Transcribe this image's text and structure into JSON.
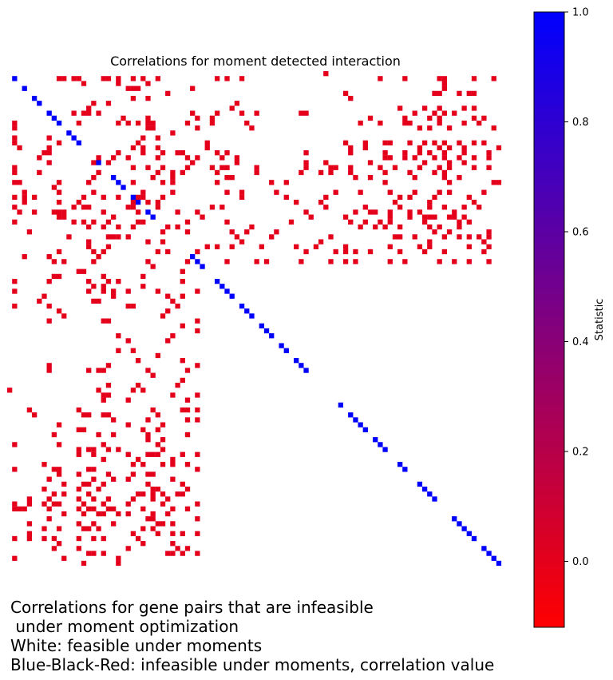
{
  "chart_data": {
    "type": "heatmap",
    "title": "Correlations for moment detected interaction",
    "matrix_size": 100,
    "background": "white",
    "colormap": {
      "low_color": "#ff0000",
      "mid_color": "#800080",
      "high_color": "#0000ff",
      "vmin": -0.12,
      "vmax": 1.0
    },
    "colorbar": {
      "label": "Statistic",
      "ticks": [
        0.0,
        0.2,
        0.4,
        0.6,
        0.8,
        1.0
      ],
      "tick_labels": [
        "0.0",
        "0.2",
        "0.4",
        "0.6",
        "0.8",
        "1.0"
      ]
    },
    "diagonal_value": 1.0,
    "diagonal_indices": [
      1,
      3,
      5,
      6,
      8,
      9,
      10,
      12,
      13,
      14,
      18,
      21,
      22,
      23,
      25,
      26,
      28,
      29,
      37,
      38,
      39,
      42,
      43,
      44,
      45,
      47,
      48,
      49,
      51,
      52,
      53,
      55,
      56,
      58,
      59,
      60,
      67,
      69,
      70,
      71,
      72,
      74,
      75,
      76,
      79,
      80,
      83,
      84,
      85,
      86,
      90,
      91,
      92,
      93,
      94,
      96,
      97,
      98,
      99
    ],
    "offdiag_value": 0.0,
    "offdiag_cells": [
      [
        0,
        64
      ],
      [
        1,
        13
      ],
      [
        1,
        14
      ],
      [
        1,
        20
      ],
      [
        1,
        22
      ],
      [
        1,
        25
      ],
      [
        1,
        30
      ],
      [
        1,
        42
      ],
      [
        1,
        44
      ],
      [
        1,
        47
      ],
      [
        1,
        75
      ],
      [
        1,
        80
      ],
      [
        1,
        87
      ],
      [
        1,
        88
      ],
      [
        1,
        94
      ],
      [
        1,
        98
      ],
      [
        2,
        88
      ],
      [
        3,
        25
      ],
      [
        3,
        37
      ],
      [
        3,
        88
      ],
      [
        4,
        68
      ],
      [
        4,
        86
      ],
      [
        4,
        87
      ],
      [
        4,
        91
      ],
      [
        4,
        93
      ],
      [
        4,
        94
      ],
      [
        5,
        69
      ],
      [
        6,
        20
      ],
      [
        6,
        46
      ],
      [
        7,
        45
      ],
      [
        7,
        79
      ],
      [
        7,
        84
      ],
      [
        7,
        87
      ],
      [
        7,
        92
      ],
      [
        7,
        94
      ],
      [
        8,
        13
      ],
      [
        8,
        15
      ],
      [
        8,
        16
      ],
      [
        8,
        18
      ],
      [
        8,
        37
      ],
      [
        8,
        42
      ],
      [
        8,
        47
      ],
      [
        8,
        50
      ],
      [
        8,
        59
      ],
      [
        8,
        60
      ],
      [
        8,
        82
      ],
      [
        8,
        86
      ],
      [
        8,
        88
      ],
      [
        8,
        90
      ],
      [
        9,
        23
      ],
      [
        9,
        28
      ],
      [
        9,
        38
      ],
      [
        9,
        41
      ],
      [
        9,
        73
      ],
      [
        9,
        80
      ],
      [
        9,
        85
      ],
      [
        9,
        87
      ],
      [
        9,
        94
      ],
      [
        9,
        96
      ],
      [
        10,
        1
      ],
      [
        10,
        14
      ],
      [
        10,
        26
      ],
      [
        10,
        28
      ],
      [
        10,
        29
      ],
      [
        10,
        36
      ],
      [
        10,
        41
      ],
      [
        10,
        48
      ],
      [
        10,
        71
      ],
      [
        10,
        75
      ],
      [
        10,
        80
      ],
      [
        10,
        81
      ],
      [
        10,
        87
      ],
      [
        10,
        92
      ],
      [
        10,
        95
      ],
      [
        11,
        1
      ],
      [
        11,
        28
      ],
      [
        11,
        49
      ],
      [
        11,
        83
      ],
      [
        11,
        85
      ],
      [
        11,
        89
      ],
      [
        11,
        98
      ],
      [
        14,
        40
      ],
      [
        14,
        68
      ],
      [
        14,
        72
      ],
      [
        14,
        76
      ],
      [
        14,
        77
      ],
      [
        14,
        81
      ],
      [
        14,
        84
      ],
      [
        14,
        86
      ],
      [
        14,
        88
      ],
      [
        14,
        91
      ],
      [
        14,
        94
      ],
      [
        14,
        96
      ],
      [
        15,
        2
      ],
      [
        15,
        27
      ],
      [
        15,
        30
      ],
      [
        15,
        40
      ],
      [
        15,
        69
      ],
      [
        15,
        72
      ],
      [
        15,
        83
      ],
      [
        15,
        87
      ],
      [
        15,
        89
      ],
      [
        15,
        92
      ],
      [
        15,
        99
      ],
      [
        16,
        7
      ],
      [
        16,
        27
      ],
      [
        16,
        31
      ],
      [
        16,
        35
      ],
      [
        16,
        42
      ],
      [
        16,
        44
      ],
      [
        16,
        60
      ],
      [
        16,
        69
      ],
      [
        16,
        76
      ],
      [
        16,
        80
      ],
      [
        16,
        83
      ],
      [
        16,
        85
      ],
      [
        16,
        88
      ],
      [
        16,
        92
      ],
      [
        16,
        97
      ],
      [
        17,
        6
      ],
      [
        17,
        18
      ],
      [
        17,
        21
      ],
      [
        17,
        24
      ],
      [
        17,
        30
      ],
      [
        17,
        36
      ],
      [
        17,
        38
      ],
      [
        17,
        43
      ],
      [
        17,
        46
      ],
      [
        17,
        76
      ],
      [
        17,
        77
      ],
      [
        17,
        80
      ],
      [
        17,
        82
      ],
      [
        17,
        86
      ],
      [
        17,
        88
      ],
      [
        17,
        91
      ],
      [
        17,
        94
      ],
      [
        17,
        97
      ],
      [
        18,
        37
      ],
      [
        18,
        46
      ],
      [
        18,
        60
      ],
      [
        18,
        64
      ],
      [
        18,
        73
      ],
      [
        18,
        84
      ],
      [
        18,
        89
      ],
      [
        18,
        92
      ],
      [
        19,
        1
      ],
      [
        19,
        25
      ],
      [
        19,
        28
      ],
      [
        19,
        31
      ],
      [
        19,
        36
      ],
      [
        19,
        41
      ],
      [
        19,
        43
      ],
      [
        19,
        44
      ],
      [
        19,
        50
      ],
      [
        19,
        60
      ],
      [
        19,
        65
      ],
      [
        19,
        66
      ],
      [
        19,
        69
      ],
      [
        19,
        75
      ],
      [
        19,
        78
      ],
      [
        19,
        83
      ],
      [
        19,
        87
      ],
      [
        19,
        89
      ],
      [
        19,
        94
      ],
      [
        19,
        97
      ],
      [
        20,
        18
      ],
      [
        20,
        30
      ],
      [
        20,
        35
      ],
      [
        20,
        42
      ],
      [
        20,
        50
      ],
      [
        20,
        59
      ],
      [
        20,
        63
      ],
      [
        20,
        65
      ],
      [
        20,
        69
      ],
      [
        20,
        76
      ],
      [
        20,
        81
      ],
      [
        20,
        86
      ],
      [
        20,
        88
      ],
      [
        21,
        21
      ],
      [
        21,
        44
      ],
      [
        21,
        45
      ],
      [
        21,
        70
      ],
      [
        21,
        73
      ],
      [
        21,
        82
      ],
      [
        21,
        88
      ],
      [
        21,
        91
      ],
      [
        22,
        2
      ],
      [
        22,
        10
      ],
      [
        22,
        16
      ],
      [
        22,
        25
      ],
      [
        22,
        33
      ],
      [
        22,
        42
      ],
      [
        22,
        53
      ],
      [
        22,
        56
      ],
      [
        22,
        76
      ],
      [
        22,
        89
      ],
      [
        22,
        98
      ],
      [
        22,
        99
      ],
      [
        24,
        3
      ],
      [
        24,
        10
      ],
      [
        24,
        27
      ],
      [
        24,
        44
      ],
      [
        24,
        47
      ],
      [
        24,
        54
      ],
      [
        24,
        66
      ],
      [
        24,
        71
      ],
      [
        24,
        77
      ],
      [
        24,
        82
      ],
      [
        24,
        87
      ],
      [
        24,
        89
      ],
      [
        24,
        96
      ],
      [
        25,
        5
      ],
      [
        25,
        15
      ],
      [
        25,
        26
      ],
      [
        25,
        31
      ],
      [
        25,
        47
      ],
      [
        25,
        56
      ],
      [
        25,
        64
      ],
      [
        25,
        79
      ],
      [
        25,
        81
      ],
      [
        25,
        86
      ],
      [
        25,
        93
      ],
      [
        26,
        3
      ],
      [
        26,
        14
      ],
      [
        26,
        28
      ],
      [
        26,
        30
      ],
      [
        26,
        58
      ],
      [
        26,
        63
      ],
      [
        26,
        78
      ],
      [
        26,
        85
      ],
      [
        26,
        94
      ],
      [
        27,
        1
      ],
      [
        27,
        13
      ],
      [
        27,
        25
      ],
      [
        27,
        41
      ],
      [
        27,
        43
      ],
      [
        27,
        64
      ],
      [
        27,
        72
      ],
      [
        27,
        79
      ],
      [
        27,
        85
      ],
      [
        27,
        88
      ],
      [
        27,
        92
      ],
      [
        27,
        95
      ],
      [
        28,
        2
      ],
      [
        28,
        5
      ],
      [
        28,
        60
      ],
      [
        28,
        70
      ],
      [
        28,
        73
      ],
      [
        28,
        74
      ],
      [
        28,
        77
      ],
      [
        28,
        81
      ],
      [
        28,
        83
      ],
      [
        28,
        90
      ],
      [
        29,
        11
      ],
      [
        29,
        21
      ],
      [
        29,
        39
      ],
      [
        29,
        61
      ],
      [
        29,
        68
      ],
      [
        29,
        77
      ],
      [
        29,
        81
      ],
      [
        29,
        84
      ],
      [
        29,
        85
      ],
      [
        29,
        86
      ],
      [
        29,
        89
      ],
      [
        29,
        90
      ],
      [
        29,
        92
      ],
      [
        30,
        13
      ],
      [
        30,
        27
      ],
      [
        30,
        36
      ],
      [
        30,
        44
      ],
      [
        30,
        57
      ],
      [
        30,
        69
      ],
      [
        30,
        72
      ],
      [
        30,
        75
      ],
      [
        30,
        77
      ],
      [
        30,
        84
      ],
      [
        30,
        91
      ],
      [
        30,
        93
      ],
      [
        31,
        22
      ],
      [
        31,
        32
      ],
      [
        31,
        49
      ],
      [
        31,
        71
      ],
      [
        31,
        74
      ],
      [
        31,
        76
      ],
      [
        31,
        79
      ],
      [
        31,
        85
      ],
      [
        31,
        87
      ],
      [
        31,
        91
      ],
      [
        32,
        4
      ],
      [
        32,
        36
      ],
      [
        32,
        45
      ],
      [
        32,
        48
      ],
      [
        32,
        54
      ],
      [
        32,
        86
      ],
      [
        32,
        89
      ],
      [
        32,
        97
      ],
      [
        33,
        12
      ],
      [
        33,
        20
      ],
      [
        33,
        21
      ],
      [
        33,
        24
      ],
      [
        33,
        46
      ],
      [
        33,
        53
      ],
      [
        33,
        65
      ],
      [
        33,
        78
      ],
      [
        33,
        79
      ],
      [
        33,
        82
      ],
      [
        33,
        88
      ],
      [
        33,
        91
      ],
      [
        33,
        93
      ],
      [
        33,
        95
      ],
      [
        33,
        97
      ],
      [
        34,
        16
      ],
      [
        34,
        28
      ],
      [
        34,
        31
      ],
      [
        34,
        34
      ],
      [
        34,
        47
      ],
      [
        34,
        63
      ],
      [
        34,
        85
      ],
      [
        34,
        96
      ],
      [
        35,
        40
      ],
      [
        35,
        42
      ],
      [
        35,
        45
      ],
      [
        35,
        51
      ],
      [
        35,
        58
      ],
      [
        35,
        62
      ],
      [
        35,
        68
      ],
      [
        35,
        77
      ],
      [
        35,
        83
      ],
      [
        35,
        85
      ],
      [
        35,
        93
      ],
      [
        35,
        97
      ],
      [
        36,
        38
      ],
      [
        36,
        60
      ],
      [
        36,
        66
      ],
      [
        36,
        68
      ],
      [
        36,
        70
      ],
      [
        36,
        73
      ],
      [
        36,
        79
      ],
      [
        36,
        84
      ],
      [
        36,
        88
      ],
      [
        36,
        96
      ],
      [
        38,
        11
      ],
      [
        38,
        28
      ],
      [
        38,
        44
      ],
      [
        38,
        50
      ],
      [
        38,
        52
      ],
      [
        38,
        59
      ],
      [
        38,
        65
      ],
      [
        38,
        68
      ],
      [
        38,
        70
      ],
      [
        38,
        77
      ],
      [
        38,
        80
      ],
      [
        38,
        87
      ],
      [
        38,
        90
      ],
      [
        38,
        93
      ],
      [
        38,
        97
      ]
    ]
  },
  "caption": {
    "line1": "Correlations for gene pairs that are infeasible",
    "line2": " under moment optimization",
    "line3": "White: feasible under moments",
    "line4": "Blue-Black-Red: infeasible under moments, correlation value"
  }
}
